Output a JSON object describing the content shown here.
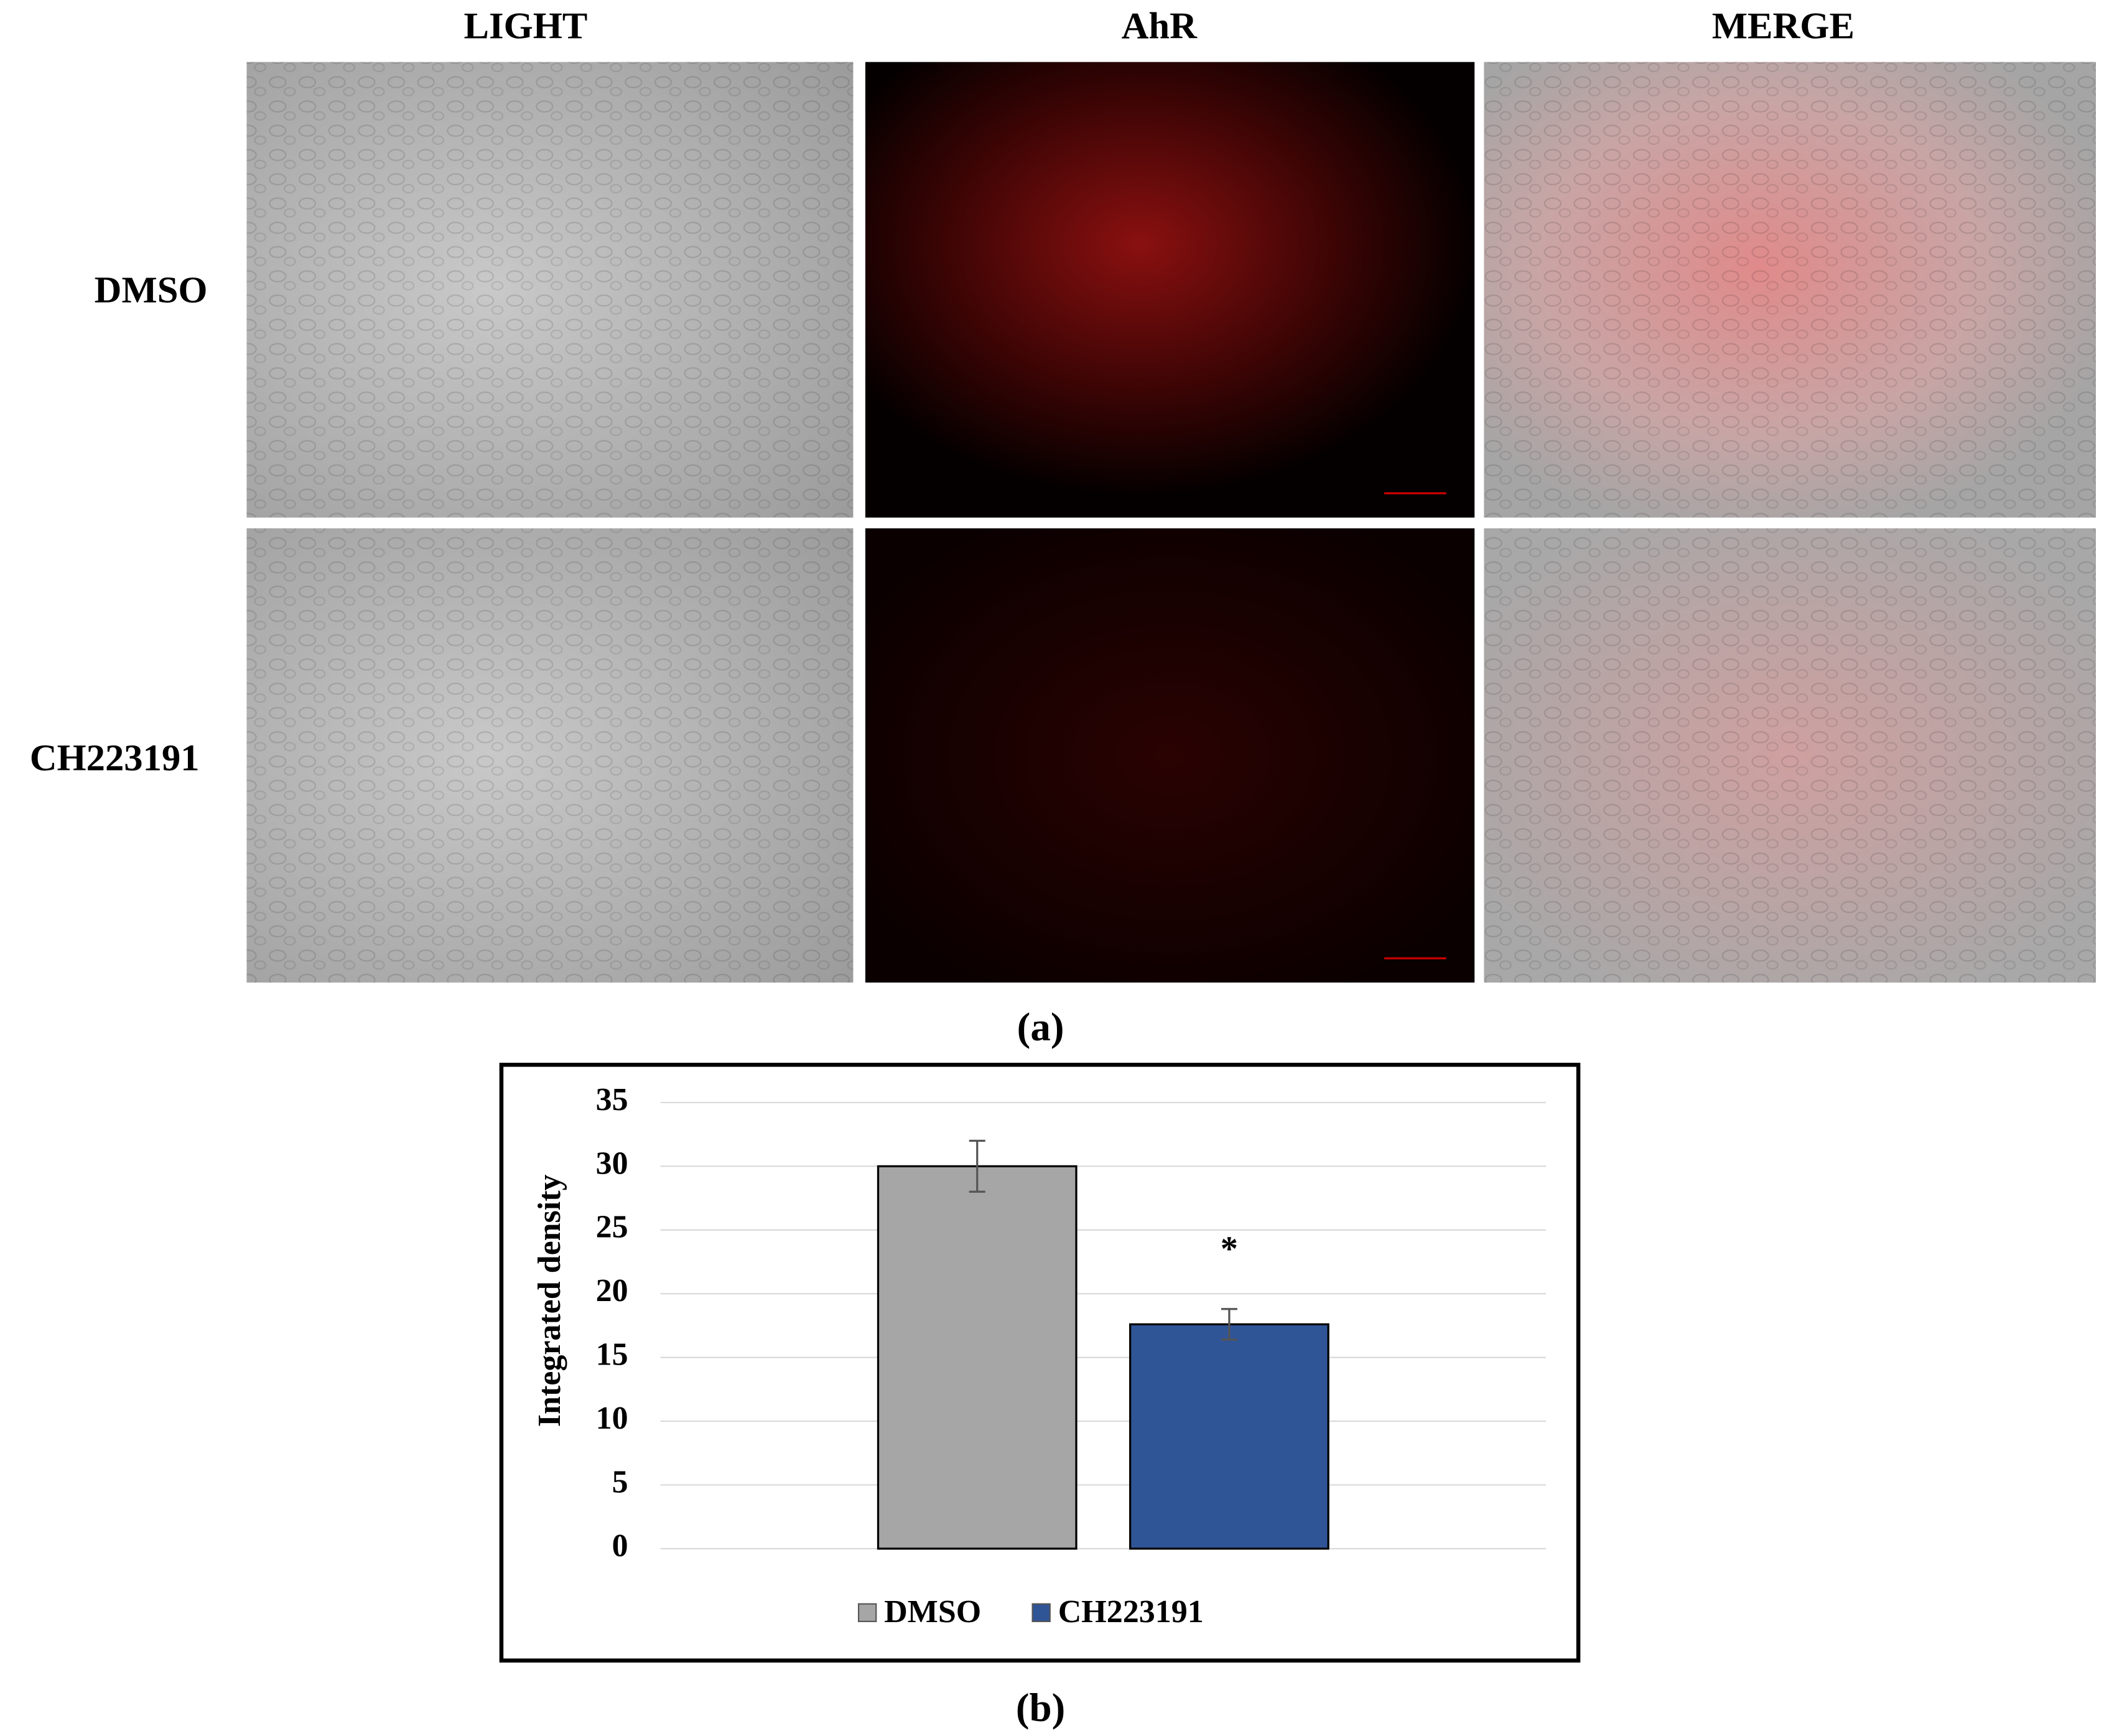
{
  "panel_a": {
    "label": "(a)",
    "columns": [
      "LIGHT",
      "AhR",
      "MERGE"
    ],
    "rows": [
      "DMSO",
      "CH223191"
    ]
  },
  "chart_data": {
    "type": "bar",
    "panel_label": "(b)",
    "y_label": "Integrated density",
    "categories": [
      "DMSO",
      "CH223191"
    ],
    "values": [
      30,
      17.6
    ],
    "errors": [
      2,
      1.2
    ],
    "colors": [
      "#a6a6a6",
      "#2f5597"
    ],
    "annotations": [
      {
        "text": "*",
        "category": 1
      }
    ],
    "ylim": [
      0,
      35
    ],
    "yticks": [
      0,
      5,
      10,
      15,
      20,
      25,
      30,
      35
    ],
    "grid": true
  }
}
